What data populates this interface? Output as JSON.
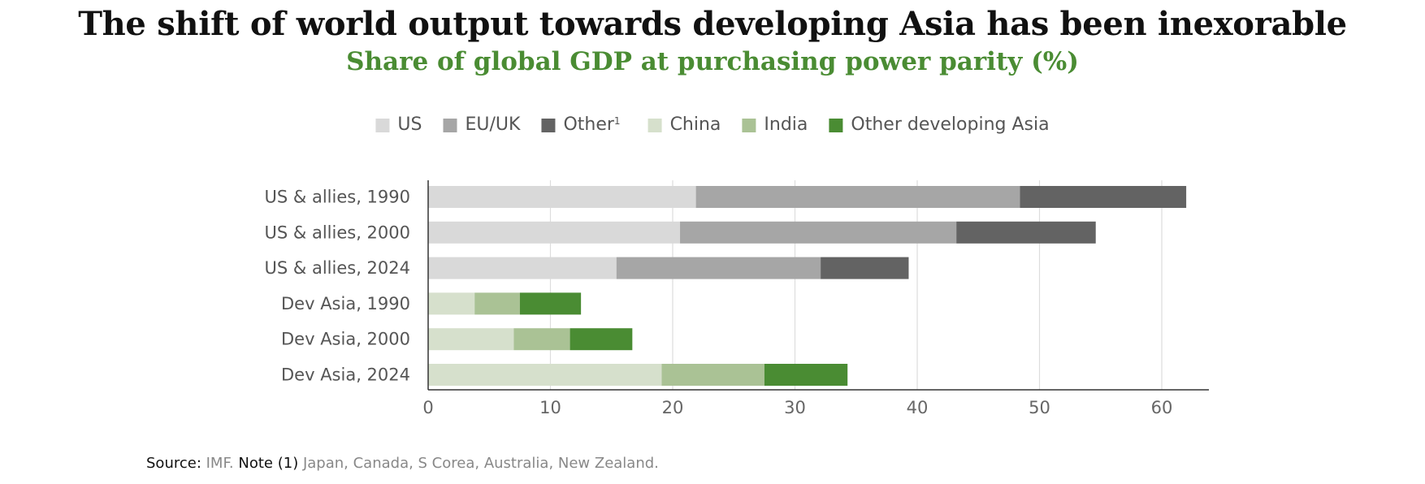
{
  "title": "The shift of world output towards developing Asia has been inexorable",
  "subtitle": "Share of global GDP at purchasing power parity (%)",
  "source": {
    "source_label": "Source:",
    "source_text": "IMF.",
    "note_label": "Note (1)",
    "note_text": "Japan, Canada, S Corea, Australia, New Zealand."
  },
  "chart_data": {
    "type": "bar",
    "orientation": "horizontal",
    "stacked": true,
    "categories": [
      "US & allies, 1990",
      "US & allies, 2000",
      "US & allies, 2024",
      "Dev Asia, 1990",
      "Dev Asia, 2000",
      "Dev Asia, 2024"
    ],
    "series": [
      {
        "name": "US",
        "color": "#d9d9d9",
        "values": [
          21.9,
          20.6,
          15.4,
          0,
          0,
          0
        ]
      },
      {
        "name": "EU/UK",
        "color": "#a6a6a6",
        "values": [
          26.5,
          22.6,
          16.7,
          0,
          0,
          0
        ]
      },
      {
        "name": "Other",
        "legend_sup": "1",
        "color": "#636363",
        "values": [
          13.6,
          11.4,
          7.2,
          0,
          0,
          0
        ]
      },
      {
        "name": "China",
        "color": "#d6e0cc",
        "values": [
          0,
          0,
          0,
          3.8,
          7.0,
          19.1
        ]
      },
      {
        "name": "India",
        "color": "#aac295",
        "values": [
          0,
          0,
          0,
          3.7,
          4.6,
          8.4
        ]
      },
      {
        "name": "Other developing Asia",
        "color": "#4a8c33",
        "values": [
          0,
          0,
          0,
          5.0,
          5.1,
          6.8
        ]
      }
    ],
    "xlim": [
      0,
      63
    ],
    "xticks": [
      0,
      10,
      20,
      30,
      40,
      50,
      60
    ],
    "grid": "vertical",
    "legend_position": "top"
  }
}
